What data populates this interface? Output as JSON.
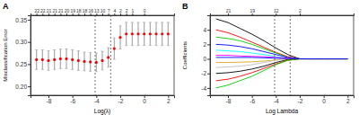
{
  "chart_data": [
    {
      "type": "scatter",
      "title": "A",
      "x_label": "Log(λ)",
      "y_label": "Misclassification Error",
      "x": [
        -9,
        -8.5,
        -8,
        -7.5,
        -7,
        -6.5,
        -6,
        -5.5,
        -5,
        -4.5,
        -4,
        -3.5,
        -3,
        -2.5,
        -2,
        -1.5,
        -1,
        -0.5,
        0,
        0.5,
        1,
        1.5,
        2
      ],
      "values": [
        0.26,
        0.26,
        0.258,
        0.26,
        0.262,
        0.262,
        0.26,
        0.258,
        0.256,
        0.255,
        0.254,
        0.258,
        0.265,
        0.285,
        0.31,
        0.318,
        0.318,
        0.318,
        0.318,
        0.318,
        0.318,
        0.318,
        0.318
      ],
      "errors": [
        0.022,
        0.022,
        0.022,
        0.022,
        0.022,
        0.022,
        0.022,
        0.022,
        0.021,
        0.021,
        0.021,
        0.021,
        0.022,
        0.024,
        0.026,
        0.026,
        0.026,
        0.026,
        0.026,
        0.026,
        0.026,
        0.026,
        0.026
      ],
      "color": "#ff0000",
      "marker": "circle",
      "reference_lines": [
        -4.1,
        -2.8
      ],
      "xlim": [
        -9.5,
        2.5
      ],
      "xticks": [
        -8,
        -6,
        -4,
        -2,
        0,
        2
      ],
      "ylim": [
        0.18,
        0.36
      ],
      "yticks": [
        {
          "value": 0.2,
          "label": "0.20"
        },
        0.25,
        {
          "value": 0.3,
          "label": "0.30"
        },
        0.35
      ],
      "top_ticks": [
        {
          "value": -9,
          "label": "22"
        },
        {
          "value": -8.5,
          "label": "22"
        },
        {
          "value": -8,
          "label": "21"
        },
        {
          "value": -7.5,
          "label": "21"
        },
        {
          "value": -7,
          "label": "21"
        },
        {
          "value": -6.5,
          "label": "20"
        },
        {
          "value": -6,
          "label": "19"
        },
        {
          "value": -5.5,
          "label": "18"
        },
        {
          "value": -5,
          "label": "18"
        },
        {
          "value": -4.5,
          "label": "16"
        },
        {
          "value": -4,
          "label": "13"
        },
        {
          "value": -3.5,
          "label": "10"
        },
        {
          "value": -3,
          "label": "7"
        },
        {
          "value": -2.5,
          "label": "4"
        },
        {
          "value": -2,
          "label": "2"
        },
        {
          "value": -1.5,
          "label": "2"
        },
        {
          "value": -1,
          "label": "1"
        },
        {
          "value": 0,
          "label": "0"
        }
      ],
      "grid": false
    },
    {
      "type": "line",
      "title": "B",
      "x_label": "Log Lambda",
      "y_label": "Coefficients",
      "x": [
        -9,
        -8,
        -7,
        -6,
        -5,
        -4,
        -3,
        -2,
        -1,
        0,
        1,
        2
      ],
      "series": [
        {
          "color": "#000000",
          "values": [
            5.5,
            5.0,
            4.2,
            3.4,
            2.5,
            1.5,
            0.6,
            0,
            0,
            0,
            0,
            0
          ]
        },
        {
          "color": "#ff0000",
          "values": [
            4.0,
            3.6,
            3.0,
            2.3,
            1.6,
            0.9,
            0.3,
            0,
            0,
            0,
            0,
            0
          ]
        },
        {
          "color": "#00cd00",
          "values": [
            3.0,
            2.8,
            2.5,
            2.0,
            1.4,
            0.8,
            0.2,
            0,
            0,
            0,
            0,
            0
          ]
        },
        {
          "color": "#0000ff",
          "values": [
            2.0,
            1.9,
            1.7,
            1.4,
            1.0,
            0.6,
            0.2,
            0,
            0,
            0,
            0,
            0
          ]
        },
        {
          "color": "#00ffff",
          "values": [
            1.2,
            1.1,
            1.0,
            0.8,
            0.6,
            0.3,
            0.05,
            0,
            0,
            0,
            0,
            0
          ]
        },
        {
          "color": "#ff00ff",
          "values": [
            0.5,
            0.5,
            0.4,
            0.35,
            0.3,
            0.2,
            0.1,
            0,
            0,
            0,
            0,
            0
          ]
        },
        {
          "color": "#daa520",
          "values": [
            -0.5,
            -0.5,
            -0.45,
            -0.4,
            -0.3,
            -0.15,
            0,
            0,
            0,
            0,
            0,
            0
          ]
        },
        {
          "color": "#bebebe",
          "values": [
            -1.2,
            -1.1,
            -1.0,
            -0.8,
            -0.5,
            -0.2,
            0,
            0,
            0,
            0,
            0,
            0
          ]
        },
        {
          "color": "#000000",
          "values": [
            -2.0,
            -1.9,
            -1.7,
            -1.4,
            -1.0,
            -0.5,
            -0.1,
            0,
            0,
            0,
            0,
            0
          ]
        },
        {
          "color": "#ff0000",
          "values": [
            -3.0,
            -2.8,
            -2.4,
            -1.9,
            -1.3,
            -0.7,
            -0.2,
            0,
            0,
            0,
            0,
            0
          ]
        },
        {
          "color": "#00cd00",
          "values": [
            -4.0,
            -3.6,
            -3.0,
            -2.4,
            -1.6,
            -0.8,
            -0.2,
            0,
            0,
            0,
            0,
            0
          ]
        },
        {
          "color": "#0000ff",
          "values": [
            0.2,
            0.2,
            0.2,
            0.2,
            0.15,
            0.1,
            0.05,
            0.02,
            0,
            0,
            0,
            0
          ]
        }
      ],
      "reference_lines": [
        -4.1,
        -2.8
      ],
      "xlim": [
        -9.5,
        2.5
      ],
      "xticks": [
        -8,
        -6,
        -4,
        -2,
        0,
        2
      ],
      "ylim": [
        -5,
        6
      ],
      "yticks": [
        -4,
        -2,
        0,
        2,
        4
      ],
      "top_ticks": [
        {
          "value": -8,
          "label": "21"
        },
        {
          "value": -6,
          "label": "19"
        },
        {
          "value": -4,
          "label": "12"
        },
        {
          "value": -2,
          "label": "2"
        }
      ],
      "grid": false
    }
  ]
}
